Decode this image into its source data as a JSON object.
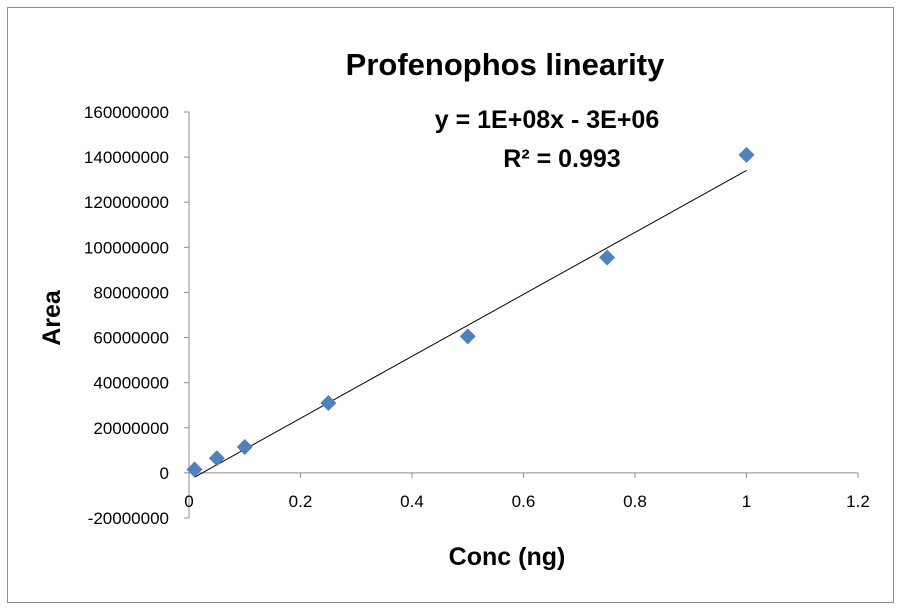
{
  "chart_data": {
    "type": "scatter",
    "title": "Profenophos  linearity",
    "xlabel": "Conc (ng)",
    "ylabel": "Area",
    "xlim": [
      0,
      1.2
    ],
    "ylim": [
      -20000000,
      160000000
    ],
    "x_ticks": [
      0,
      0.2,
      0.4,
      0.6,
      0.8,
      1,
      1.2
    ],
    "x_tick_labels": [
      "0",
      "0.2",
      "0.4",
      "0.6",
      "0.8",
      "1",
      "1.2"
    ],
    "y_ticks": [
      -20000000,
      0,
      20000000,
      40000000,
      60000000,
      80000000,
      100000000,
      120000000,
      140000000,
      160000000
    ],
    "y_tick_labels": [
      "-20000000",
      "0",
      "20000000",
      "40000000",
      "60000000",
      "80000000",
      "100000000",
      "120000000",
      "140000000",
      "160000000"
    ],
    "grid": false,
    "series": [
      {
        "x": [
          0.01,
          0.05,
          0.1,
          0.25,
          0.5,
          0.75,
          1.0
        ],
        "y": [
          1500000,
          6500000,
          11500000,
          31000000,
          60500000,
          95500000,
          141000000
        ],
        "marker": "diamond",
        "color": "#4F81BD"
      }
    ],
    "trendline": {
      "type": "linear",
      "from": [
        0.01,
        -1900000
      ],
      "to": [
        1.0,
        134100000
      ],
      "color": "#000000",
      "equation": "y = 1E+08x - 3E+06",
      "r_squared": "R² = 0.993"
    }
  }
}
